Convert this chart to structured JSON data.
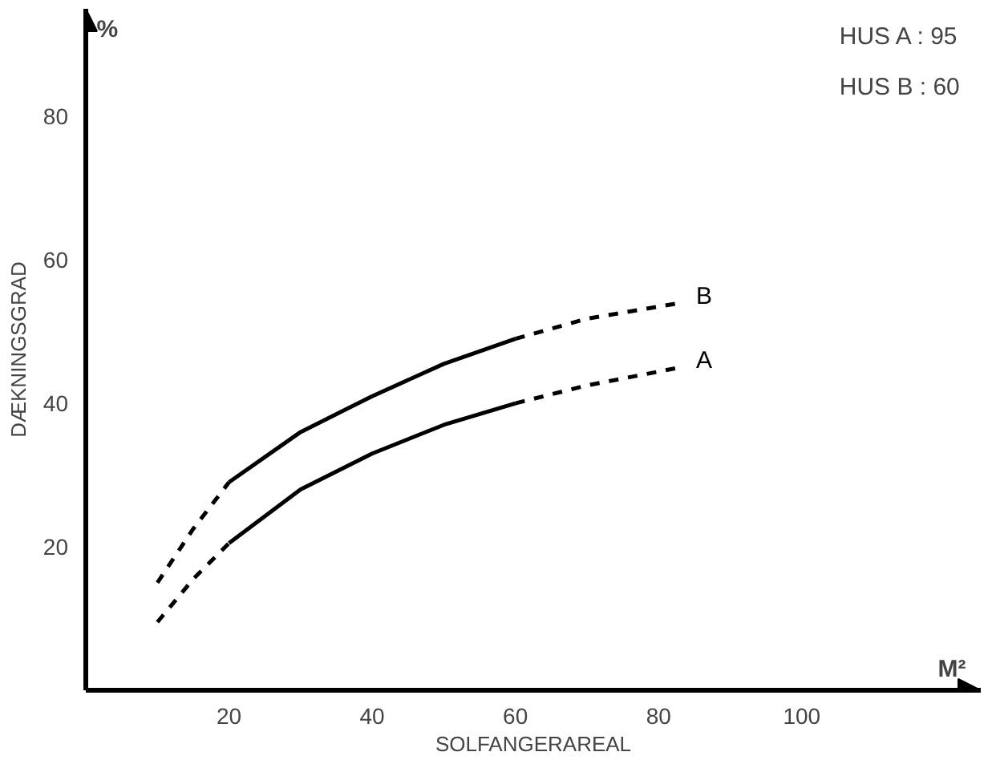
{
  "chart_data": {
    "type": "line",
    "xlabel": "SOLFANGERAREAL",
    "ylabel": "DÆKNINGSGRAD",
    "xlim": [
      0,
      125
    ],
    "ylim": [
      0,
      95
    ],
    "xticks": [
      20,
      40,
      60,
      80,
      100
    ],
    "yticks": [
      20,
      40,
      60,
      80
    ],
    "grid": false,
    "marker": "none",
    "series": [
      {
        "color": "#000000",
        "line_style": "dashed",
        "x": [
          10,
          15,
          20
        ],
        "values": [
          15,
          22.5,
          29
        ]
      },
      {
        "color": "#000000",
        "line_style": "solid",
        "x": [
          20,
          30,
          40,
          50,
          60
        ],
        "values": [
          29,
          36,
          41,
          45.5,
          49
        ]
      },
      {
        "name": "B",
        "color": "#000000",
        "line_style": "dashed",
        "x": [
          60,
          70,
          83
        ],
        "values": [
          49,
          51.8,
          54
        ]
      },
      {
        "color": "#000000",
        "line_style": "dashed",
        "x": [
          10,
          15,
          20
        ],
        "values": [
          9.5,
          15.5,
          20.5
        ]
      },
      {
        "color": "#000000",
        "line_style": "solid",
        "x": [
          20,
          30,
          40,
          50,
          60
        ],
        "values": [
          20.5,
          28,
          33,
          37,
          40
        ]
      },
      {
        "name": "A",
        "color": "#000000",
        "line_style": "dashed",
        "x": [
          60,
          70,
          83
        ],
        "values": [
          40,
          42.5,
          45
        ]
      }
    ],
    "annotations": [
      "%",
      "M²",
      "HUS A :  95",
      "HUS B :  60"
    ]
  }
}
